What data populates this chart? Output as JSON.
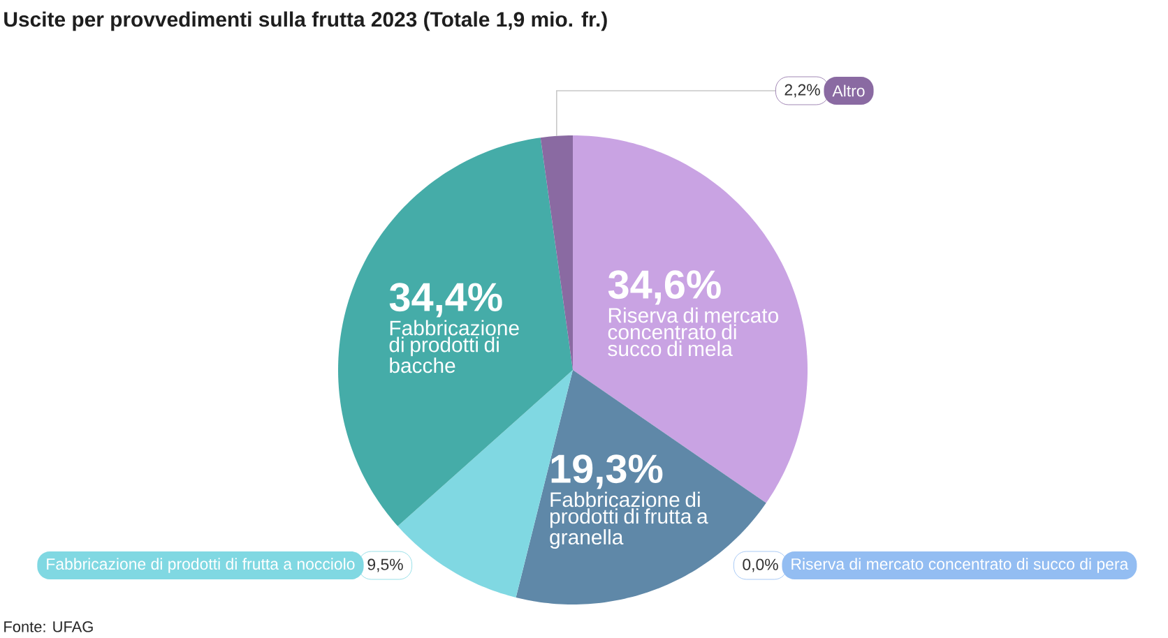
{
  "chart_data": {
    "type": "pie",
    "title": "Uscite per provvedimenti sulla frutta 2023 (Totale 1,9 mio. fr.)",
    "categories": [
      "Riserva di mercato concentrato di succo di mela",
      "Riserva di mercato concentrato di succo di pera",
      "Fabbricazione di prodotti di frutta a granella",
      "Fabbricazione di prodotti di frutta a nocciolo",
      "Fabbricazione di prodotti di bacche",
      "Altro"
    ],
    "values": [
      34.6,
      0.0,
      19.3,
      9.5,
      34.4,
      2.2
    ],
    "value_labels": [
      "34,6%",
      "0,0%",
      "19,3%",
      "9,5%",
      "34,4%",
      "2,2%"
    ],
    "colors": [
      "#c9a3e3",
      "#93bdf2",
      "#5f88a8",
      "#80d8e2",
      "#45aca8",
      "#8a6aa2"
    ],
    "annotations": [
      "Fonte: UFAG"
    ]
  }
}
